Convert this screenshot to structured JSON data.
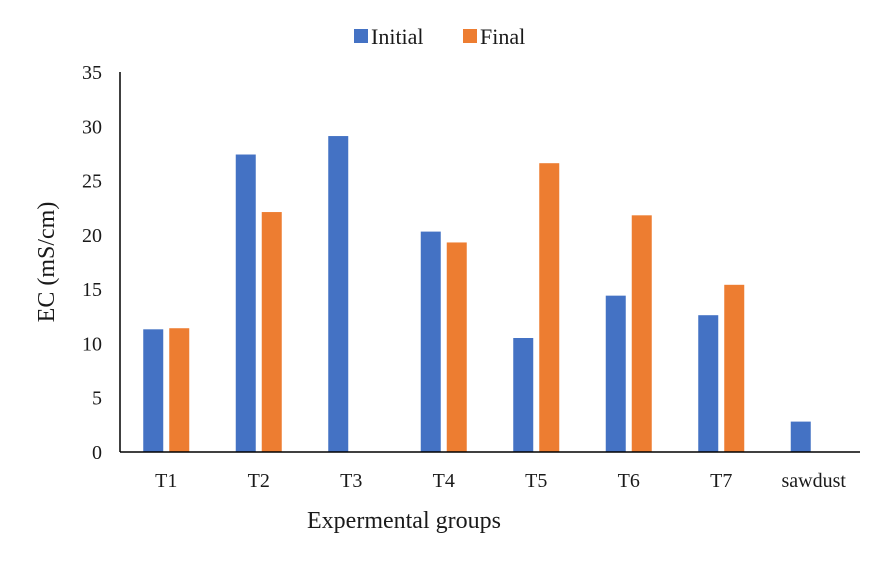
{
  "chart_data": {
    "type": "bar",
    "title": "",
    "xlabel": "Expermental groups",
    "ylabel": "EC (mS/cm)",
    "ylim": [
      0,
      35
    ],
    "yticks": [
      0,
      5,
      10,
      15,
      20,
      25,
      30,
      35
    ],
    "categories": [
      "T1",
      "T2",
      "T3",
      "T4",
      "T5",
      "T6",
      "T7",
      "sawdust"
    ],
    "series": [
      {
        "name": "Initial",
        "color": "#4472C4",
        "values": [
          11.3,
          27.4,
          29.1,
          20.3,
          10.5,
          14.4,
          12.6,
          2.8
        ]
      },
      {
        "name": "Final",
        "color": "#ED7D31",
        "values": [
          11.4,
          22.1,
          null,
          19.3,
          26.6,
          21.8,
          15.4,
          null
        ]
      }
    ],
    "legend_position": "top-center",
    "grid": false
  }
}
